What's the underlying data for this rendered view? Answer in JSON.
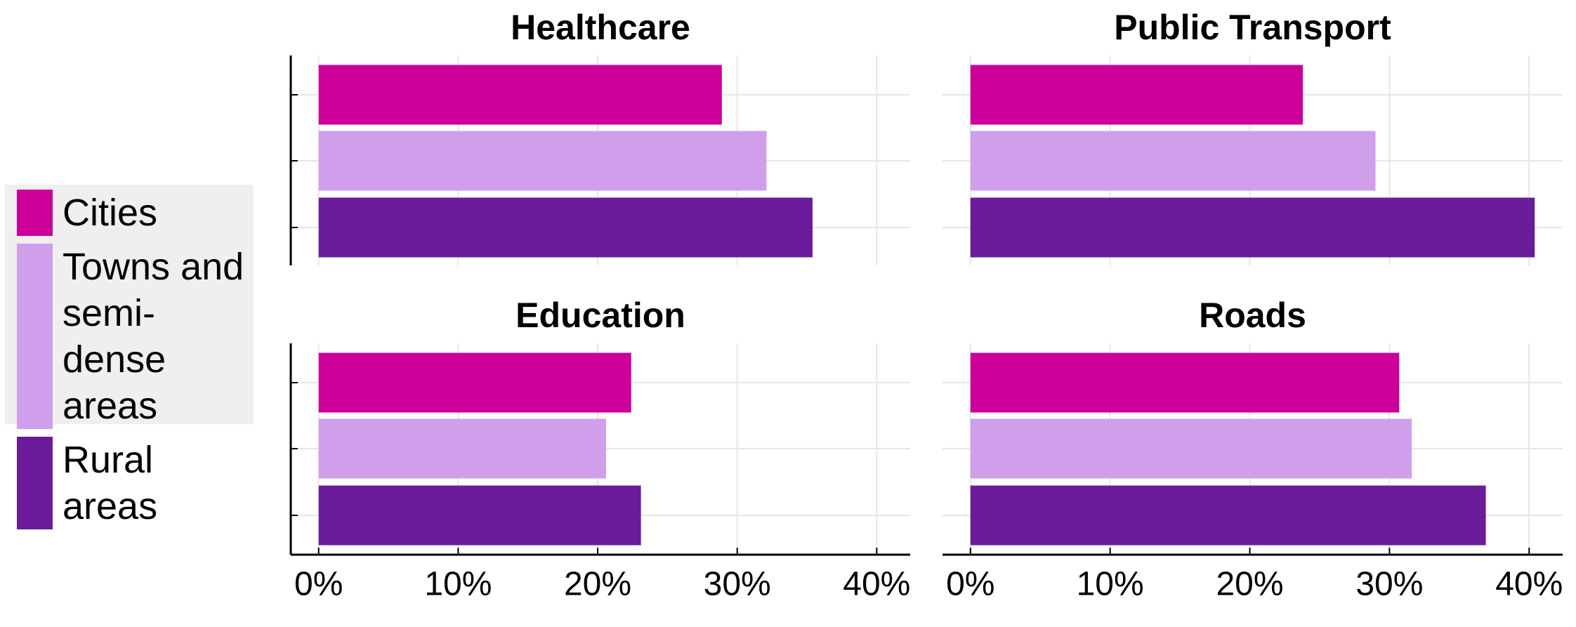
{
  "chart_data": {
    "type": "bar",
    "orientation": "horizontal",
    "categories": [
      "Healthcare",
      "Public Transport",
      "Education",
      "Roads"
    ],
    "series": [
      {
        "name": "Cities",
        "color": "#cc0099",
        "values": [
          28.9,
          23.8,
          22.4,
          30.7
        ]
      },
      {
        "name": "Towns and semi-dense areas",
        "color": "#cf9fec",
        "values": [
          32.1,
          29.0,
          20.6,
          31.6
        ]
      },
      {
        "name": "Rural areas",
        "color": "#6a1b9a",
        "values": [
          35.4,
          40.4,
          23.1,
          36.9
        ]
      }
    ],
    "xlim": [
      -2,
      42.4
    ],
    "xticks": [
      {
        "value": 0,
        "label": "0%"
      },
      {
        "value": 10,
        "label": "10%"
      },
      {
        "value": 20,
        "label": "20%"
      },
      {
        "value": 30,
        "label": "30%"
      },
      {
        "value": 40,
        "label": "40%"
      }
    ],
    "grid": true,
    "legend": "left"
  }
}
